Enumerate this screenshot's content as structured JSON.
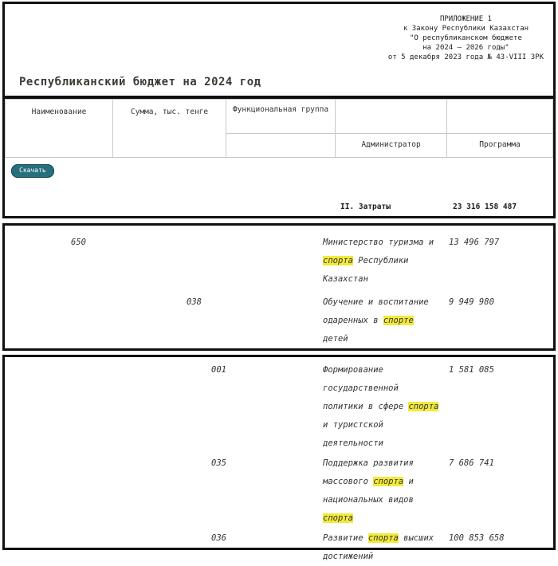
{
  "appendix": {
    "lines": [
      "ПРИЛОЖЕНИЕ 1",
      "к Закону Республики Казахстан",
      "\"О республиканском бюджете",
      "на 2024 – 2026 годы\"",
      "от 5 декабря 2023 года № 43-VIII ЗРК"
    ]
  },
  "title": "Республиканский бюджет на 2024 год",
  "download_button": {
    "label": "Скачать"
  },
  "table": {
    "headers": {
      "functional_group": "Функциональная группа",
      "administrator": "Администратор",
      "program": "Программа",
      "name": "Наименование",
      "sum": "Сумма, тыс. тенге"
    },
    "totals": {
      "label": "II. Затраты",
      "amount": "23 316 158 487"
    },
    "rows": [
      {
        "functional_group": "650",
        "administrator": "",
        "program": "",
        "name_parts": [
          {
            "t": "Министерство туризма и\n"
          },
          {
            "t": "спорта",
            "hl": true
          },
          {
            "t": " Республики\nКазахстан"
          }
        ],
        "amount": "13 496 797"
      },
      {
        "functional_group": "",
        "administrator": "038",
        "program": "",
        "name_parts": [
          {
            "t": "Обучение и воспитание\nодаренных в "
          },
          {
            "t": "спорте",
            "hl": true
          },
          {
            "t": "\nдетей"
          }
        ],
        "amount": "9 949 980"
      },
      {
        "functional_group": "",
        "administrator": "",
        "program": "001",
        "name_parts": [
          {
            "t": "Формирование\nгосударственной\nполитики в сфере "
          },
          {
            "t": "спорта",
            "hl": true
          },
          {
            "t": "\nи туристской\nдеятельности"
          }
        ],
        "amount": "1 581 085"
      },
      {
        "functional_group": "",
        "administrator": "",
        "program": "035",
        "name_parts": [
          {
            "t": "Поддержка развития\nмассового "
          },
          {
            "t": "спорта",
            "hl": true
          },
          {
            "t": " и\nнациональных видов\n"
          },
          {
            "t": "спорта",
            "hl": true
          }
        ],
        "amount": "7 686 741"
      },
      {
        "functional_group": "",
        "administrator": "",
        "program": "036",
        "name_parts": [
          {
            "t": "Развитие "
          },
          {
            "t": "спорта",
            "hl": true
          },
          {
            "t": " высших\nдостижений"
          }
        ],
        "amount": "100 853 658"
      }
    ]
  },
  "colors": {
    "frame_black": "#101010",
    "button_teal": "#26707e",
    "highlight_yellow": "#f2ea3a",
    "grid_gray": "#c9c9c9"
  }
}
